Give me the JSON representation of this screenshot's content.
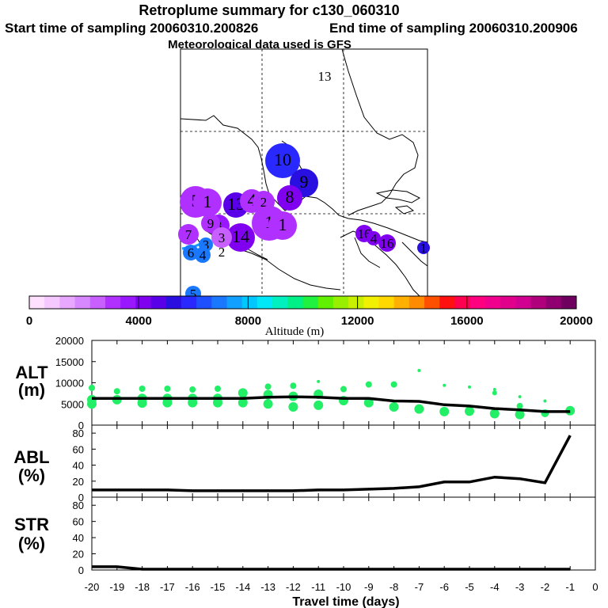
{
  "header": {
    "title": "Retroplume summary for c130_060310",
    "start_label": "Start time of sampling 20060310.200826",
    "end_label": "End time of sampling 20060310.200906",
    "met_label": "Meteorological data used is GFS"
  },
  "colorbar": {
    "label": "Altitude (m)",
    "ticks": [
      "0",
      "4000",
      "8000",
      "12000",
      "16000",
      "20000"
    ],
    "min": 0,
    "max": 20000,
    "colors": [
      "#ffe0ff",
      "#f5c8ff",
      "#e8a8ff",
      "#d888ff",
      "#c860ff",
      "#b030ff",
      "#9a18ff",
      "#8000f0",
      "#5a00e8",
      "#2a10e0",
      "#2828ff",
      "#1e50ff",
      "#1a78ff",
      "#10a0ff",
      "#00c8ff",
      "#00e8f8",
      "#00f0c0",
      "#00f088",
      "#20f040",
      "#60f000",
      "#98f000",
      "#c8f000",
      "#f0f000",
      "#ffd800",
      "#ffb000",
      "#ff8c00",
      "#ff5000",
      "#ff1010",
      "#ff0050",
      "#ff0080",
      "#f0008c",
      "#e0008c",
      "#d00090",
      "#b0007c",
      "#900070",
      "#700060"
    ]
  },
  "map": {
    "plumes": [
      {
        "label": "13",
        "alt": 5000,
        "size": 5
      },
      {
        "label": "10",
        "alt": 6000,
        "size": 22
      },
      {
        "label": "9",
        "alt": 5000,
        "size": 18
      },
      {
        "label": "8",
        "alt": 4400,
        "size": 16
      },
      {
        "label": "5",
        "alt": 3100,
        "size": 20
      },
      {
        "label": "1",
        "alt": 3000,
        "size": 18
      },
      {
        "label": "13",
        "alt": 4500,
        "size": 16
      },
      {
        "label": "4",
        "alt": 3000,
        "size": 15
      },
      {
        "label": "2",
        "alt": 3200,
        "size": 14
      },
      {
        "label": "1",
        "alt": 3100,
        "size": 22
      },
      {
        "label": "1",
        "alt": 3200,
        "size": 18
      },
      {
        "label": "14",
        "alt": 4300,
        "size": 18
      },
      {
        "label": "8",
        "alt": 3400,
        "size": 14
      },
      {
        "label": "9",
        "alt": 3100,
        "size": 12
      },
      {
        "label": "3",
        "alt": 2400,
        "size": 13
      },
      {
        "label": "7",
        "alt": 2800,
        "size": 13
      },
      {
        "label": "6",
        "alt": 7000,
        "size": 10
      },
      {
        "label": "3",
        "alt": 7000,
        "size": 9
      },
      {
        "label": "2",
        "alt": 7000,
        "size": 5
      },
      {
        "label": "4",
        "alt": 7000,
        "size": 10
      },
      {
        "label": "5",
        "alt": 7200,
        "size": 10
      },
      {
        "label": "16",
        "alt": 4400,
        "size": 11
      },
      {
        "label": "4",
        "alt": 4400,
        "size": 9
      },
      {
        "label": "16",
        "alt": 4400,
        "size": 11
      },
      {
        "label": "1",
        "alt": 5200,
        "size": 8
      }
    ]
  },
  "chart_data": [
    {
      "type": "scatter",
      "panel": "ALT",
      "ylabel": "ALT",
      "yunit": "(m)",
      "ylim": [
        0,
        20000
      ],
      "yticks": [
        "20000",
        "15000",
        "10000",
        "5000",
        "0"
      ],
      "xlim": [
        -20,
        0
      ],
      "line": {
        "name": "median altitude",
        "x": [
          -20,
          -19,
          -18,
          -17,
          -16,
          -15,
          -14,
          -13,
          -12,
          -11,
          -10,
          -9,
          -8,
          -7,
          -6,
          -5,
          -4,
          -3,
          -2,
          -1
        ],
        "y": [
          6300,
          6300,
          6300,
          6300,
          6300,
          6300,
          6300,
          6600,
          6700,
          6600,
          6300,
          6300,
          5700,
          5600,
          4800,
          4500,
          3900,
          3600,
          3200,
          3200
        ]
      },
      "points": {
        "name": "altitude spread",
        "x": [
          -20,
          -20,
          -20,
          -19,
          -19,
          -18,
          -18,
          -18,
          -17,
          -17,
          -17,
          -16,
          -16,
          -16,
          -15,
          -15,
          -15,
          -14,
          -14,
          -13,
          -13,
          -13,
          -12,
          -12,
          -12,
          -11,
          -11,
          -11,
          -10,
          -10,
          -9,
          -9,
          -8,
          -8,
          -7,
          -7,
          -6,
          -6,
          -5,
          -5,
          -4,
          -4,
          -4,
          -3,
          -3,
          -3,
          -2,
          -2,
          -1
        ],
        "y": [
          8800,
          6000,
          5000,
          8000,
          6000,
          8600,
          6300,
          5200,
          8600,
          6300,
          5300,
          8400,
          6300,
          5300,
          8600,
          6300,
          5300,
          7600,
          5300,
          9100,
          7200,
          5000,
          9300,
          6800,
          4300,
          10300,
          7300,
          4700,
          8500,
          5800,
          9600,
          5300,
          9600,
          4300,
          12900,
          3800,
          9400,
          3200,
          9000,
          3300,
          8400,
          7600,
          2700,
          6700,
          4500,
          2500,
          5700,
          2800,
          3400
        ],
        "sizes": [
          4,
          6,
          6,
          4,
          6,
          4,
          6,
          6,
          4,
          6,
          6,
          4,
          6,
          6,
          4,
          6,
          6,
          6,
          6,
          4,
          6,
          6,
          4,
          6,
          6,
          2,
          6,
          6,
          4,
          6,
          4,
          6,
          4,
          6,
          2,
          6,
          2,
          6,
          2,
          6,
          2,
          3,
          6,
          2,
          4,
          6,
          2,
          5,
          6
        ]
      }
    },
    {
      "type": "line",
      "panel": "ABL",
      "ylabel": "ABL",
      "yunit": "(%)",
      "ylim": [
        0,
        90
      ],
      "yticks": [
        "80",
        "60",
        "40",
        "20",
        "0"
      ],
      "x": [
        -20,
        -19,
        -18,
        -17,
        -16,
        -15,
        -14,
        -13,
        -12,
        -11,
        -10,
        -9,
        -8,
        -7,
        -6,
        -5,
        -4,
        -3,
        -2,
        -1
      ],
      "y": [
        9,
        9,
        9,
        9,
        8,
        8,
        8,
        8,
        8,
        9,
        9,
        10,
        11,
        13,
        19,
        19,
        25,
        23,
        18,
        77
      ]
    },
    {
      "type": "line",
      "panel": "STR",
      "ylabel": "STR",
      "yunit": "(%)",
      "ylim": [
        0,
        90
      ],
      "yticks": [
        "80",
        "60",
        "40",
        "20",
        "0"
      ],
      "x": [
        -20,
        -19,
        -18,
        -17,
        -16,
        -15,
        -14,
        -13,
        -12,
        -11,
        -10,
        -9,
        -8,
        -7,
        -6,
        -5,
        -4,
        -3,
        -2,
        -1
      ],
      "y": [
        4,
        4,
        1,
        1,
        1,
        1,
        1,
        1,
        1,
        1,
        1,
        1,
        1,
        1,
        1,
        1,
        1,
        1,
        1,
        1
      ]
    }
  ],
  "xaxis": {
    "label": "Travel time (days)",
    "ticks": [
      "-20",
      "-19",
      "-18",
      "-17",
      "-16",
      "-15",
      "-14",
      "-13",
      "-12",
      "-11",
      "-10",
      "-9",
      "-8",
      "-7",
      "-6",
      "-5",
      "-4",
      "-3",
      "-2",
      "-1",
      "0"
    ]
  }
}
